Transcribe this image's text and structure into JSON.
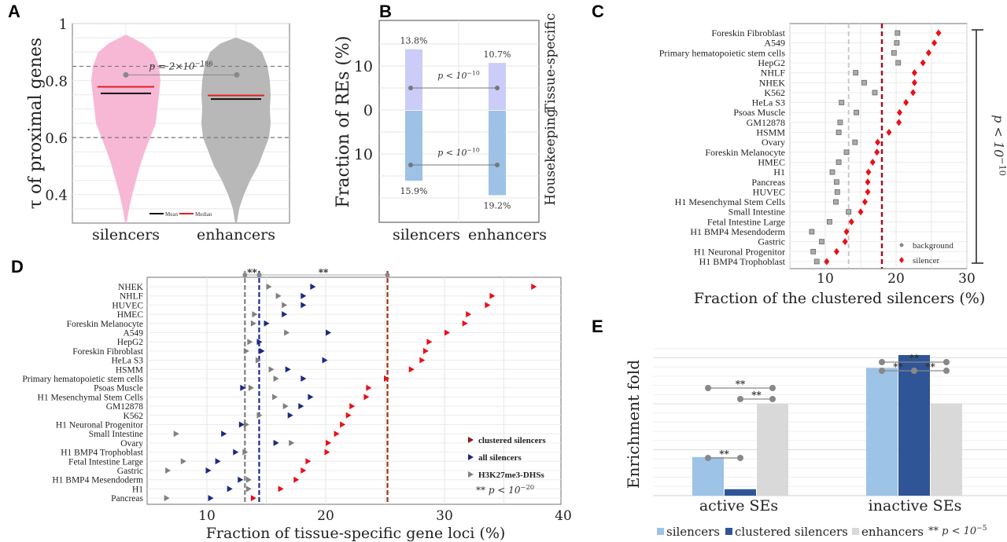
{
  "panels": {
    "A": "A",
    "B": "B",
    "C": "C",
    "D": "D",
    "E": "E"
  },
  "chart_data": [
    {
      "id": "A",
      "type": "violin",
      "ylabel": "τ of proximal genes",
      "categories": [
        "silencers",
        "enhancers"
      ],
      "ylim": [
        0.3,
        1.0
      ],
      "yticks": [
        "0.4",
        "0.6",
        "0.8",
        "1"
      ],
      "ytick_values": [
        0.4,
        0.6,
        0.8,
        1.0
      ],
      "reference_lines": [
        0.6,
        0.85
      ],
      "series": [
        {
          "name": "silencers",
          "color": "#f7b8d6",
          "mean": 0.755,
          "median": 0.778,
          "range": [
            0.3,
            0.96
          ]
        },
        {
          "name": "enhancers",
          "color": "#b8b8b8",
          "mean": 0.735,
          "median": 0.748,
          "range": [
            0.3,
            0.95
          ]
        }
      ],
      "annotation": {
        "text": "p = 2×10",
        "exp": "−186",
        "y": 0.82
      },
      "legend": [
        {
          "label": "Mean",
          "color": "#000000"
        },
        {
          "label": "Median",
          "color": "#e02020"
        }
      ],
      "legend_position": "bottom-center"
    },
    {
      "id": "B",
      "type": "bar",
      "ylabel": "Fraction of REs (%)",
      "categories": [
        "silencers",
        "enhancers"
      ],
      "yticks": [
        "10",
        "0",
        "10"
      ],
      "ytick_values": [
        10,
        0,
        -10
      ],
      "ylim": [
        -25,
        17
      ],
      "series": [
        {
          "name": "Tissue-specific",
          "color": "#ccccf8",
          "values": [
            13.8,
            10.7
          ],
          "labels": [
            "13.8%",
            "10.7%"
          ]
        },
        {
          "name": "Housekeeping",
          "color": "#9dc2e6",
          "values": [
            15.9,
            19.2
          ],
          "labels": [
            "15.9%",
            "19.2%"
          ]
        }
      ],
      "side_labels": [
        "Tissue-specific",
        "Housekeeping"
      ],
      "annotations": [
        {
          "text": "p < 10",
          "exp": "−10",
          "y": 5
        },
        {
          "text": "p < 10",
          "exp": "−10",
          "y": -12.5
        }
      ]
    },
    {
      "id": "C",
      "type": "scatter",
      "xlabel": "Fraction of the clustered silencers (%)",
      "xlim": [
        5,
        30
      ],
      "xticks": [
        "10",
        "20",
        "30"
      ],
      "xtick_values": [
        10,
        20,
        30
      ],
      "categories": [
        "Foreskin Fibroblast",
        "A549",
        "Primary hematopoietic stem cells",
        "HepG2",
        "NHLF",
        "NHEK",
        "K562",
        "HeLa S3",
        "Psoas Muscle",
        "GM12878",
        "HSMM",
        "Ovary",
        "Foreskin Melanocyte",
        "HMEC",
        "H1",
        "Pancreas",
        "HUVEC",
        "H1 Mesenchymal Stem Cells",
        "Small Intestine",
        "Fetal Intestine Large",
        "H1 BMP4 Mesendoderm",
        "Gastric",
        "H1 Neuronal Progenitor",
        "H1 BMP4 Trophoblast"
      ],
      "series": [
        {
          "name": "background",
          "color": "#808080",
          "values": [
            20.2,
            20.1,
            19.7,
            20.3,
            14.3,
            15.5,
            17.0,
            12.3,
            14.4,
            12.1,
            11.9,
            14.2,
            13.0,
            11.9,
            11.0,
            11.6,
            11.7,
            11.5,
            13.3,
            10.6,
            8.1,
            9.5,
            8.3,
            8.8
          ]
        },
        {
          "name": "silencer",
          "color": "#e8101a",
          "values": [
            26.0,
            25.4,
            24.6,
            23.8,
            22.6,
            22.6,
            22.4,
            21.4,
            20.5,
            20.4,
            19.0,
            17.4,
            17.3,
            16.7,
            16.1,
            16.0,
            16.0,
            15.6,
            15.0,
            13.7,
            13.0,
            12.8,
            11.6,
            10.2
          ]
        }
      ],
      "vlines": [
        {
          "x": 13.3,
          "color": "#c8c8c8"
        },
        {
          "x": 18.0,
          "color": "#a0102a"
        }
      ],
      "legend_position": "bottom-right",
      "bracket_label": {
        "text": "p < 10",
        "exp": "−10"
      }
    },
    {
      "id": "D",
      "type": "scatter",
      "xlabel": "Fraction of tissue-specific gene loci (%)",
      "xlim": [
        5.2,
        40
      ],
      "xticks": [
        "10",
        "20",
        "30",
        "40"
      ],
      "xtick_values": [
        10,
        20,
        30,
        40
      ],
      "categories": [
        "NHEK",
        "NHLF",
        "HUVEC",
        "HMEC",
        "Foreskin Melanocyte",
        "A549",
        "HepG2",
        "Foreskin Fibroblast",
        "HeLa S3",
        "HSMM",
        "Primary hematopoietic stem cells",
        "Psoas Muscle",
        "H1 Mesenchymal Stem Cells",
        "GM12878",
        "K562",
        "H1 Neuronal Progenitor",
        "Small Intestine",
        "Ovary",
        "H1 BMP4 Trophoblast",
        "Fetal Intestine Large",
        "Gastric",
        "H1 BMP4 Mesendoderm",
        "H1",
        "Pancreas"
      ],
      "series": [
        {
          "name": "clustered silencers",
          "color": "#e8101a",
          "legend_color": "#8b1a1a",
          "values": [
            37.5,
            34.0,
            33.6,
            32.0,
            31.7,
            30.2,
            28.7,
            28.4,
            28.1,
            27.2,
            25.1,
            23.6,
            23.4,
            22.2,
            21.9,
            21.4,
            20.9,
            20.2,
            20.1,
            18.5,
            18.1,
            17.5,
            16.2,
            13.9
          ]
        },
        {
          "name": "all silencers",
          "color": "#1a2a80",
          "values": [
            18.9,
            18.1,
            18.1,
            16.5,
            15.0,
            20.2,
            14.4,
            14.6,
            19.9,
            16.8,
            18.1,
            13.0,
            18.7,
            17.9,
            17.0,
            12.9,
            11.4,
            15.8,
            12.4,
            10.9,
            10.1,
            12.8,
            11.9,
            10.3
          ]
        },
        {
          "name": "H3K27me3-DHSs",
          "color": "#808080",
          "values": [
            15.2,
            16.0,
            16.5,
            14.0,
            13.9,
            16.7,
            13.6,
            13.3,
            14.3,
            15.4,
            15.8,
            13.7,
            15.7,
            16.6,
            14.4,
            13.3,
            7.4,
            17.1,
            13.2,
            8.0,
            6.7,
            13.5,
            13.5,
            6.6
          ]
        }
      ],
      "vlines": [
        {
          "x": 13.2,
          "color": "#808080"
        },
        {
          "x": 14.4,
          "color": "#1a2a9a"
        },
        {
          "x": 25.2,
          "color": "#a03010"
        }
      ],
      "sig": [
        {
          "text": "**",
          "from": 13.2,
          "to": 14.4
        },
        {
          "text": "**",
          "from": 14.4,
          "to": 25.2
        }
      ],
      "legend_position": "bottom-right",
      "legend_note": {
        "text": "** p < 10",
        "exp": "−20"
      }
    },
    {
      "id": "E",
      "type": "bar",
      "ylabel": "Enrichment fold",
      "categories": [
        "active SEs",
        "inactive SEs"
      ],
      "ylim": [
        0,
        1.7
      ],
      "grid_step": 0.1,
      "series": [
        {
          "name": "silencers",
          "color": "#9dc3e6",
          "values": [
            0.42,
            1.39
          ]
        },
        {
          "name": "clustered silencers",
          "color": "#2f5597",
          "values": [
            0.07,
            1.53
          ]
        },
        {
          "name": "enhancers",
          "color": "#d9d9d9",
          "values": [
            1.0,
            1.0
          ]
        }
      ],
      "sig": [
        {
          "group": 0,
          "from": 0,
          "to": 2,
          "level": 2,
          "text": "**"
        },
        {
          "group": 0,
          "from": 1,
          "to": 2,
          "level": 1,
          "text": "**"
        },
        {
          "group": 0,
          "from": 0,
          "to": 1,
          "level": 0,
          "text": "**"
        },
        {
          "group": 1,
          "from": 0,
          "to": 2,
          "level": 2,
          "text": "**"
        },
        {
          "group": 1,
          "from": 0,
          "to": 1,
          "level": 1,
          "text": "**"
        },
        {
          "group": 1,
          "from": 1,
          "to": 2,
          "level": 1,
          "text": "**"
        }
      ],
      "legend_position": "bottom",
      "legend_note": {
        "text": "** p < 10",
        "exp": "−5"
      }
    }
  ]
}
